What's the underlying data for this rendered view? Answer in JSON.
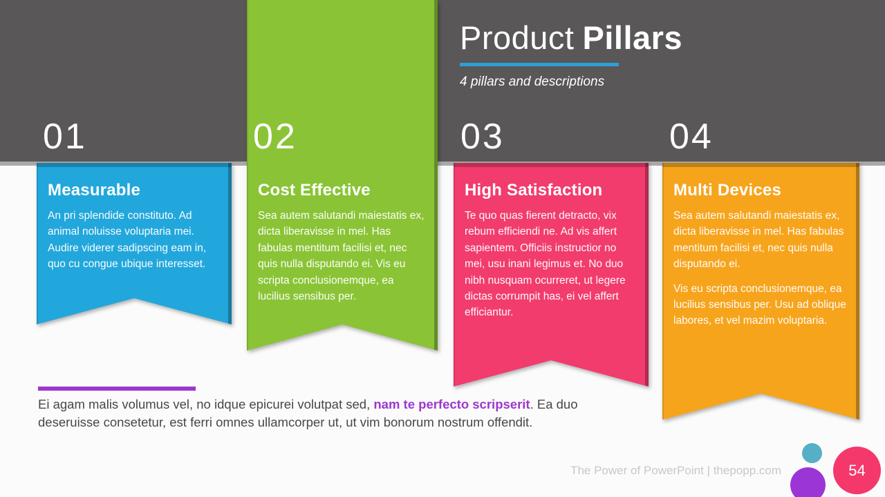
{
  "colors": {
    "slide_background": "#FBFBFB",
    "header_band": "#595757",
    "band_edge": "#A9A9A9",
    "title_underline": "#2E9FD9",
    "summary_accent": "#9C38CE",
    "footer_text": "#C8C8C8"
  },
  "header": {
    "title_light": "Product",
    "title_bold": "Pillars",
    "subtitle": "4 pillars and descriptions"
  },
  "pillars": [
    {
      "number": "01",
      "title": "Measurable",
      "color": "#22A7DC",
      "paragraphs": [
        "An pri splendide constituto. Ad animal noluisse voluptaria mei. Audire viderer sadipscing eam in, quo cu congue ubique interesset."
      ]
    },
    {
      "number": "02",
      "title": "Cost Effective",
      "color": "#8AC436",
      "paragraphs": [
        "Sea autem salutandi maiestatis ex, dicta liberavisse in mel. Has fabulas mentitum facilisi et, nec quis nulla disputando ei. Vis eu scripta conclusionemque, ea lucilius sensibus per."
      ]
    },
    {
      "number": "03",
      "title": "High Satisfaction",
      "color": "#F23C6E",
      "paragraphs": [
        "Te quo quas fierent detracto, vix rebum efficiendi ne. Ad vis affert sapientem. Officiis instructior no mei, usu inani legimus et. No duo nibh nusquam ocurreret, ut legere dictas corrumpit has, ei vel affert efficiantur."
      ]
    },
    {
      "number": "04",
      "title": "Multi Devices",
      "color": "#F7A41D",
      "paragraphs": [
        "Sea autem salutandi maiestatis ex, dicta liberavisse in mel. Has fabulas mentitum facilisi et, nec quis nulla disputando ei.",
        "Vis eu scripta conclusionemque, ea lucilius sensibus per. Usu ad oblique labores, et vel mazim voluptaria."
      ]
    }
  ],
  "summary": {
    "line1_pre": "Ei agam malis volumus vel, no idque epicurei volutpat sed, ",
    "highlight": "nam te perfecto scripserit",
    "line1_post": ". Ea duo",
    "line2": "deseruisse consetetur, est ferri omnes ullamcorper ut, ut vim bonorum nostrum offendit.",
    "highlight_color": "#9C38CE"
  },
  "footer": {
    "credit": "The Power of PowerPoint | thepopp.com",
    "page_number": "54",
    "dot_teal_color": "#55AFC6",
    "dot_purple_color": "#9C35D6",
    "dot_pink_color": "#F4386C"
  }
}
